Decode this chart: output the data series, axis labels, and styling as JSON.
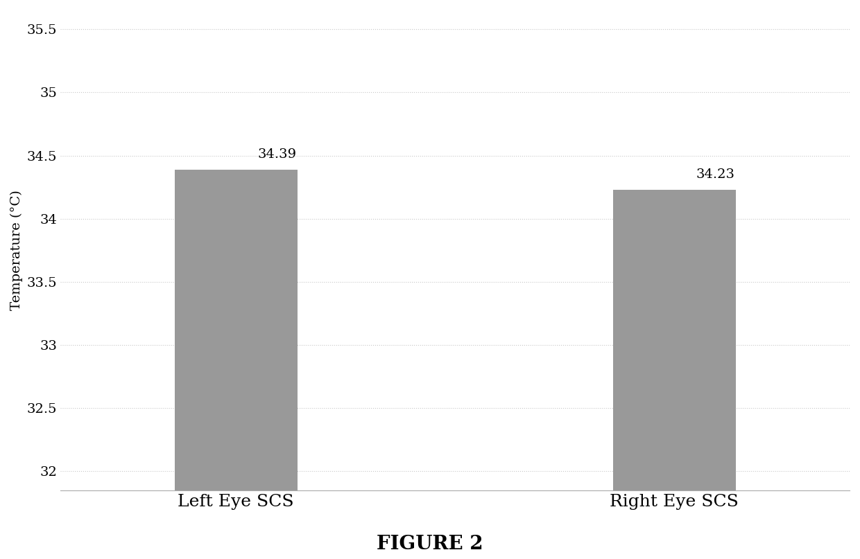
{
  "categories": [
    "Left Eye SCS",
    "Right Eye SCS"
  ],
  "values": [
    34.39,
    34.23
  ],
  "bar_color": "#999999",
  "bar_width": 0.28,
  "bar_positions": [
    1,
    2
  ],
  "ylim": [
    31.85,
    35.65
  ],
  "yticks": [
    32,
    32.5,
    33,
    33.5,
    34,
    34.5,
    35,
    35.5
  ],
  "ylabel": "Temperature (°C)",
  "figure_caption": "FIGURE 2",
  "value_labels": [
    "34.39",
    "34.23"
  ],
  "background_color": "#ffffff",
  "grid_color": "#c8c8c8",
  "tick_fontsize": 14,
  "caption_fontsize": 20,
  "value_label_fontsize": 14,
  "ylabel_fontsize": 14,
  "xtick_fontsize": 18
}
